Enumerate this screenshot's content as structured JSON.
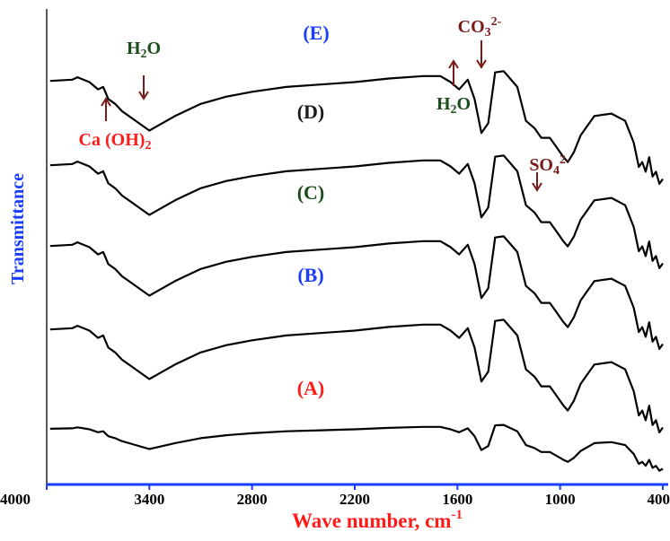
{
  "chart_data": {
    "type": "line",
    "title": "",
    "xlabel": "Wave number, cm",
    "xlabel_sup": "-1",
    "ylabel": "Transmittance",
    "x_reversed": true,
    "xlim": [
      4000,
      400
    ],
    "xticks": [
      4000,
      3400,
      2800,
      2200,
      1600,
      1000,
      400
    ],
    "xtick_labels": [
      "4000",
      "3400",
      "2800",
      "2200",
      "1600",
      "1000",
      "400"
    ],
    "grid": false,
    "series": [
      {
        "name": "(E)",
        "label_color": "#1a3cff",
        "x": [
          3980,
          3850,
          3820,
          3750,
          3700,
          3670,
          3640,
          3600,
          3560,
          3500,
          3440,
          3400,
          3350,
          3250,
          3100,
          2950,
          2800,
          2600,
          2400,
          2200,
          2000,
          1800,
          1700,
          1640,
          1590,
          1540,
          1500,
          1460,
          1420,
          1380,
          1330,
          1250,
          1200,
          1150,
          1110,
          1060,
          1020,
          980,
          955,
          920,
          880,
          800,
          700,
          620,
          570,
          540,
          520,
          500,
          480,
          460,
          440,
          420,
          400
        ],
        "y": [
          0.955,
          0.96,
          0.97,
          0.95,
          0.92,
          0.93,
          0.88,
          0.86,
          0.83,
          0.8,
          0.77,
          0.75,
          0.77,
          0.81,
          0.86,
          0.89,
          0.91,
          0.93,
          0.94,
          0.95,
          0.965,
          0.975,
          0.975,
          0.95,
          0.92,
          0.96,
          0.88,
          0.74,
          0.78,
          0.99,
          0.995,
          0.93,
          0.79,
          0.76,
          0.72,
          0.72,
          0.68,
          0.64,
          0.62,
          0.66,
          0.73,
          0.81,
          0.82,
          0.79,
          0.7,
          0.6,
          0.62,
          0.58,
          0.64,
          0.56,
          0.58,
          0.53,
          0.55
        ]
      },
      {
        "name": "(D)",
        "label_color": "#1a1a1a",
        "x": [
          3980,
          3850,
          3820,
          3750,
          3700,
          3670,
          3640,
          3600,
          3560,
          3500,
          3440,
          3400,
          3350,
          3250,
          3100,
          2950,
          2800,
          2600,
          2400,
          2200,
          2000,
          1800,
          1700,
          1640,
          1590,
          1540,
          1500,
          1460,
          1420,
          1380,
          1330,
          1250,
          1200,
          1150,
          1110,
          1060,
          1020,
          980,
          955,
          920,
          880,
          800,
          700,
          620,
          570,
          540,
          520,
          500,
          480,
          460,
          440,
          420,
          400
        ],
        "y": [
          0.955,
          0.96,
          0.97,
          0.95,
          0.92,
          0.93,
          0.88,
          0.86,
          0.83,
          0.8,
          0.77,
          0.75,
          0.77,
          0.81,
          0.86,
          0.89,
          0.91,
          0.93,
          0.94,
          0.95,
          0.965,
          0.975,
          0.975,
          0.95,
          0.92,
          0.96,
          0.88,
          0.74,
          0.78,
          0.99,
          0.995,
          0.93,
          0.79,
          0.76,
          0.72,
          0.72,
          0.68,
          0.64,
          0.62,
          0.66,
          0.73,
          0.81,
          0.82,
          0.79,
          0.7,
          0.6,
          0.62,
          0.58,
          0.64,
          0.56,
          0.58,
          0.53,
          0.55
        ]
      },
      {
        "name": "(C)",
        "label_color": "#1a4d1a",
        "x": [
          3980,
          3850,
          3820,
          3750,
          3700,
          3670,
          3640,
          3600,
          3560,
          3500,
          3440,
          3400,
          3350,
          3250,
          3100,
          2950,
          2800,
          2600,
          2400,
          2200,
          2000,
          1800,
          1700,
          1640,
          1590,
          1540,
          1500,
          1460,
          1420,
          1380,
          1330,
          1250,
          1200,
          1150,
          1110,
          1060,
          1020,
          980,
          955,
          920,
          880,
          800,
          700,
          620,
          570,
          540,
          520,
          500,
          480,
          460,
          440,
          420,
          400
        ],
        "y": [
          0.955,
          0.96,
          0.97,
          0.95,
          0.92,
          0.93,
          0.88,
          0.86,
          0.83,
          0.8,
          0.77,
          0.75,
          0.77,
          0.81,
          0.86,
          0.89,
          0.91,
          0.93,
          0.94,
          0.95,
          0.965,
          0.975,
          0.975,
          0.95,
          0.92,
          0.96,
          0.88,
          0.74,
          0.78,
          0.99,
          0.995,
          0.93,
          0.79,
          0.76,
          0.72,
          0.72,
          0.68,
          0.64,
          0.62,
          0.66,
          0.73,
          0.81,
          0.82,
          0.79,
          0.7,
          0.6,
          0.62,
          0.58,
          0.64,
          0.56,
          0.58,
          0.53,
          0.55
        ]
      },
      {
        "name": "(B)",
        "label_color": "#1a3cff",
        "x": [
          3980,
          3850,
          3820,
          3750,
          3700,
          3670,
          3640,
          3600,
          3560,
          3500,
          3440,
          3400,
          3350,
          3250,
          3100,
          2950,
          2800,
          2600,
          2400,
          2200,
          2000,
          1800,
          1700,
          1640,
          1590,
          1540,
          1500,
          1460,
          1420,
          1380,
          1330,
          1250,
          1200,
          1150,
          1110,
          1060,
          1020,
          980,
          955,
          920,
          880,
          800,
          700,
          620,
          570,
          540,
          520,
          500,
          480,
          460,
          440,
          420,
          400
        ],
        "y": [
          0.955,
          0.96,
          0.97,
          0.95,
          0.92,
          0.93,
          0.88,
          0.86,
          0.83,
          0.8,
          0.77,
          0.75,
          0.77,
          0.81,
          0.86,
          0.89,
          0.91,
          0.93,
          0.94,
          0.95,
          0.965,
          0.975,
          0.975,
          0.95,
          0.92,
          0.96,
          0.88,
          0.74,
          0.78,
          0.99,
          0.995,
          0.93,
          0.79,
          0.76,
          0.72,
          0.72,
          0.68,
          0.64,
          0.62,
          0.66,
          0.73,
          0.81,
          0.82,
          0.79,
          0.7,
          0.6,
          0.62,
          0.58,
          0.64,
          0.56,
          0.58,
          0.53,
          0.55
        ]
      },
      {
        "name": "(A)",
        "label_color": "#ff1a1a",
        "x": [
          3980,
          3850,
          3820,
          3750,
          3700,
          3670,
          3640,
          3600,
          3560,
          3500,
          3440,
          3400,
          3350,
          3250,
          3100,
          2950,
          2800,
          2600,
          2400,
          2200,
          2000,
          1800,
          1700,
          1640,
          1590,
          1540,
          1500,
          1460,
          1420,
          1380,
          1330,
          1250,
          1200,
          1150,
          1110,
          1060,
          1020,
          980,
          955,
          920,
          880,
          800,
          700,
          620,
          570,
          540,
          520,
          500,
          480,
          460,
          440,
          420,
          400
        ],
        "y": [
          0.955,
          0.96,
          0.97,
          0.95,
          0.92,
          0.93,
          0.88,
          0.86,
          0.83,
          0.8,
          0.77,
          0.75,
          0.77,
          0.81,
          0.86,
          0.89,
          0.91,
          0.93,
          0.94,
          0.95,
          0.965,
          0.975,
          0.975,
          0.95,
          0.92,
          0.96,
          0.88,
          0.74,
          0.78,
          0.99,
          0.995,
          0.93,
          0.79,
          0.76,
          0.72,
          0.72,
          0.68,
          0.64,
          0.62,
          0.66,
          0.73,
          0.81,
          0.82,
          0.79,
          0.7,
          0.6,
          0.62,
          0.58,
          0.64,
          0.56,
          0.58,
          0.53,
          0.55
        ]
      }
    ],
    "annotations": [
      {
        "id": "h2o-3400",
        "text": "H",
        "sub": "2",
        "rest": "O",
        "x": 3400,
        "color": "#1a4d1a",
        "arrow": "down"
      },
      {
        "id": "caoh2",
        "text": "Ca (OH)",
        "sub": "2",
        "rest": "",
        "x": 3640,
        "color": "#ff1a1a",
        "arrow": "up"
      },
      {
        "id": "co3",
        "text": "CO",
        "sub": "3",
        "sup": "2-",
        "rest": "",
        "x": 1480,
        "color": "#7a1a1a",
        "arrow": "down"
      },
      {
        "id": "h2o-1640",
        "text": "H",
        "sub": "2",
        "rest": "O",
        "x": 1620,
        "color": "#1a4d1a",
        "arrow": "up"
      },
      {
        "id": "so4",
        "text": "SO",
        "sub": "4",
        "sup": "2-",
        "rest": "",
        "x": 1090,
        "color": "#7a1a1a",
        "arrow": "down"
      }
    ],
    "colors": {
      "axis": "#1a3cff",
      "line": "#000000",
      "arrow": "#7a1a1a",
      "xlabel": "#ff1a1a",
      "ylabel": "#1a3cff"
    }
  }
}
